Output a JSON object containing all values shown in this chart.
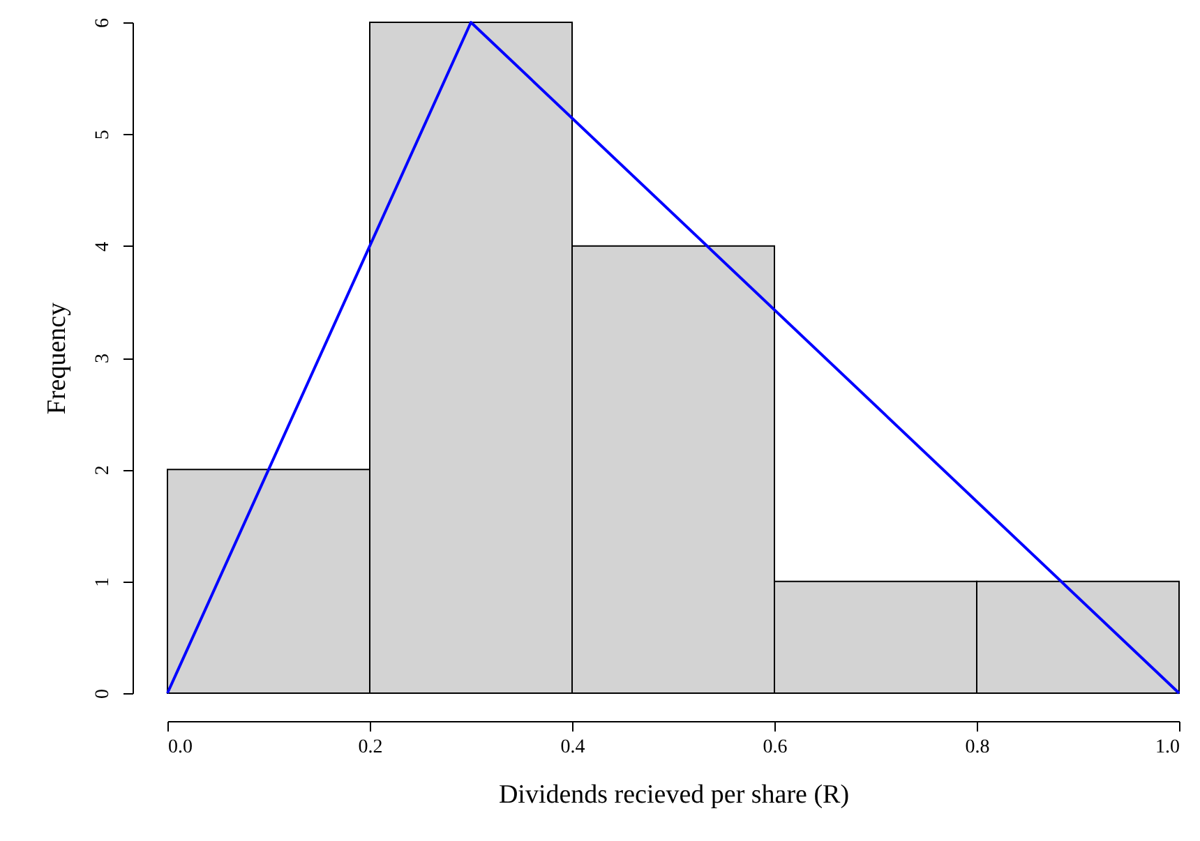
{
  "chart_data": {
    "type": "histogram",
    "xlabel": "Dividends recieved per share (R)",
    "ylabel": "Frequency",
    "bins": [
      0,
      0.2,
      0.4,
      0.6,
      0.8,
      1.0
    ],
    "values": [
      2,
      6,
      4,
      1,
      1
    ],
    "color": "#d3d3d3",
    "xlim": [
      0,
      1
    ],
    "ylim": [
      0,
      6
    ],
    "xticks": [
      {
        "value": 0,
        "label": "0.0"
      },
      {
        "value": 0.2,
        "label": "0.2"
      },
      {
        "value": 0.4,
        "label": "0.4"
      },
      {
        "value": 0.6,
        "label": "0.6"
      },
      {
        "value": 0.8,
        "label": "0.8"
      },
      {
        "value": 1,
        "label": "1.0"
      }
    ],
    "yticks": [
      0,
      1,
      2,
      3,
      4,
      5,
      6
    ],
    "grid": false,
    "series": [
      {
        "type": "line",
        "color": "#0000ff",
        "x": [
          0,
          0.3,
          1
        ],
        "values": [
          0,
          6,
          0
        ]
      }
    ]
  }
}
